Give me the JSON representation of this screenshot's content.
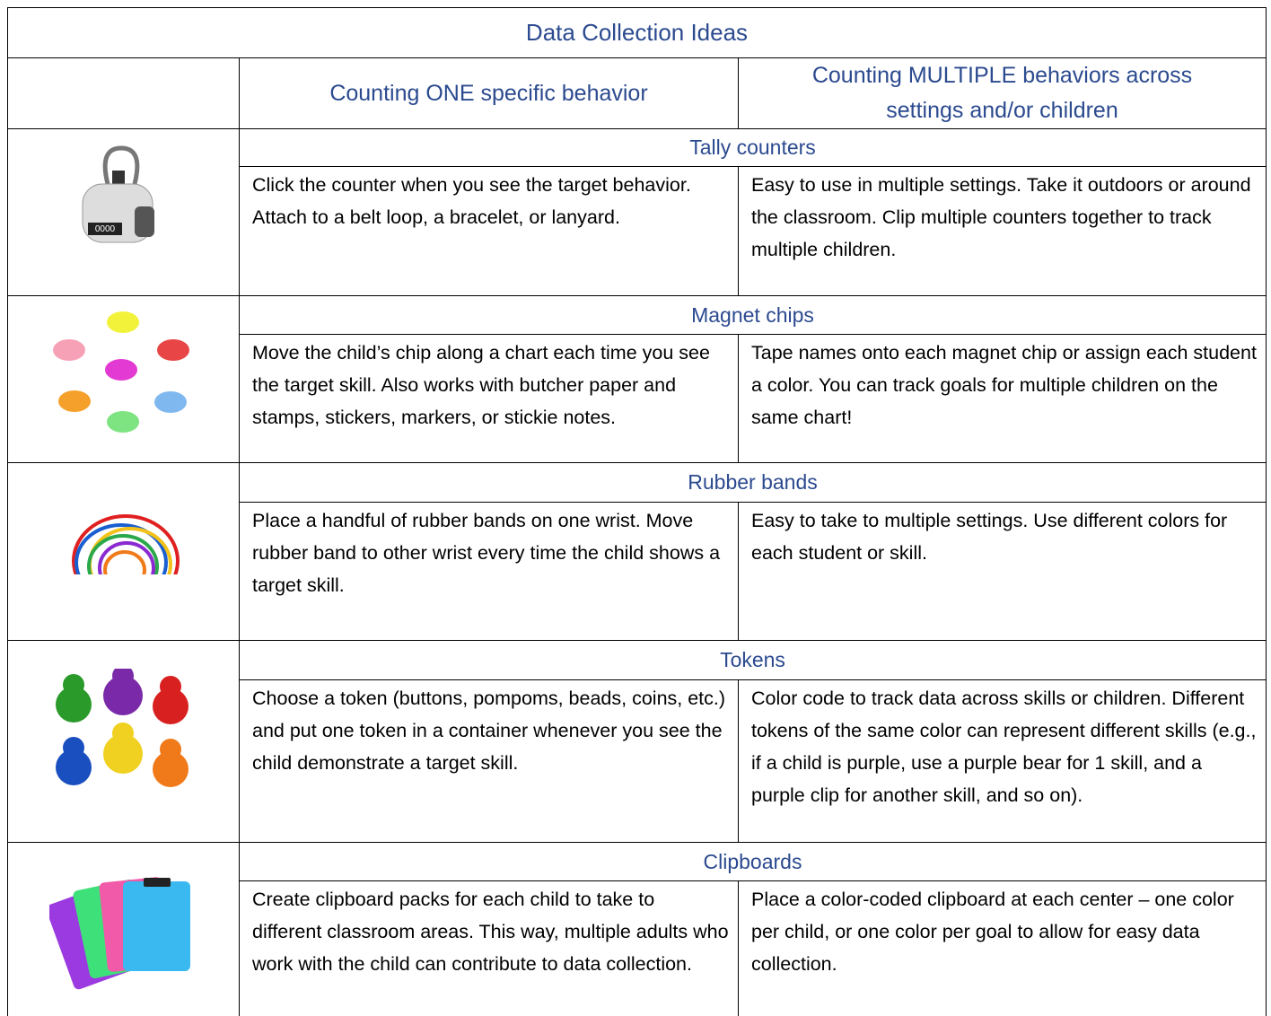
{
  "title": "Data Collection Ideas",
  "columns": [
    "Counting ONE specific behavior",
    "Counting MULTIPLE behaviors across settings and/or children"
  ],
  "rows": [
    {
      "label": "Tally counters",
      "one": "Click the counter when you see the target behavior. Attach to a belt loop, a bracelet, or lanyard.",
      "multiple": "Easy to use in multiple settings. Take it outdoors or around the classroom. Clip multiple counters together to track multiple children."
    },
    {
      "label": "Magnet chips",
      "one": "Move the child’s chip along a chart each time you see the target skill. Also works with butcher paper and stamps, stickers, markers, or stickie notes.",
      "multiple": "Tape names onto each magnet chip or assign each student a color. You can track goals for multiple children on the same chart!"
    },
    {
      "label": "Rubber bands",
      "one": "Place a handful of rubber bands on one wrist. Move rubber band to other wrist every time the child shows a target skill.",
      "multiple": "Easy to take to multiple settings. Use different colors for each student or skill."
    },
    {
      "label": "Tokens",
      "one": "Choose a token (buttons, pompoms, beads, coins, etc.) and put one token in a container whenever you see the child demonstrate a target skill.",
      "multiple": "Color code to track data across skills or children. Different tokens of the same color can represent different skills (e.g., if a child is purple, use a purple bear for 1 skill, and a purple clip for another skill, and so on)."
    },
    {
      "label": "Clipboards",
      "one": "Create clipboard packs for each child to take to different classroom areas. This way, multiple adults who work with the child can contribute to data collection.",
      "multiple": "Place a color-coded clipboard at each center – one color per child, or one color per goal to allow for easy data collection."
    }
  ]
}
